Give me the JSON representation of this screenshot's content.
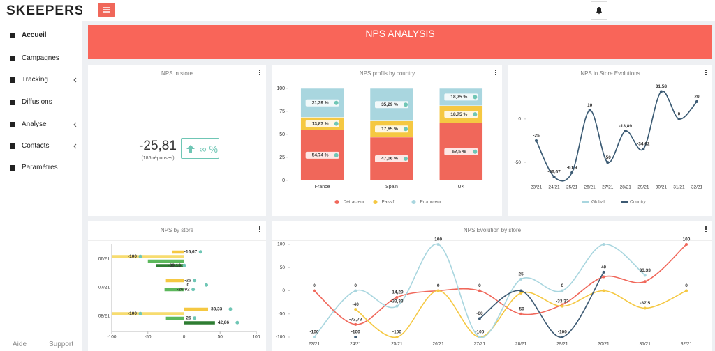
{
  "sidebar": {
    "logo": "SKEEPERS",
    "items": [
      "Accueil",
      "Campagnes",
      "Tracking",
      "Diffusions",
      "Analyse",
      "Contacts",
      "Paramètres"
    ],
    "footer": [
      "Aide",
      "Support"
    ]
  },
  "header": {
    "title": "NPS ANALYSIS"
  },
  "kpi": {
    "title": "NPS in store",
    "value": "-25,81",
    "note": "(186 réponses)",
    "change": "∞ %"
  },
  "chart_data": [
    {
      "type": "stacked_bar",
      "title": "NPS profils by country",
      "categories": [
        "France",
        "Spain",
        "UK"
      ],
      "series": [
        {
          "name": "Détracteur",
          "color": "#f0675a",
          "values": [
            54.74,
            47.06,
            62.5
          ],
          "value_labels": [
            "54,74 %",
            "47,06 %",
            "62,5 %"
          ]
        },
        {
          "name": "Passif",
          "color": "#f5c842",
          "values": [
            13.87,
            17.65,
            18.75
          ],
          "value_labels": [
            "13,87 %",
            "17,65 %",
            "18,75 %"
          ]
        },
        {
          "name": "Promoteur",
          "color": "#a9d6df",
          "values": [
            31.39,
            35.29,
            18.75
          ],
          "value_labels": [
            "31,39 %",
            "35,29 %",
            "18,75 %"
          ]
        }
      ],
      "ylim": [
        0,
        100
      ],
      "yticks": [
        0,
        25,
        50,
        75,
        100
      ]
    },
    {
      "type": "line",
      "title": "NPS in Store Evolutions",
      "categories": [
        "23/21",
        "24/21",
        "25/21",
        "26/21",
        "27/21",
        "28/21",
        "29/21",
        "30/21",
        "31/21",
        "32/21"
      ],
      "series": [
        {
          "name": "Global",
          "color": "#a9d6df",
          "values": [
            -25,
            -66.67,
            -61.9,
            10,
            -50,
            -13.89,
            -34.62,
            31.58,
            0,
            20
          ]
        },
        {
          "name": "Country",
          "color": "#3d5a73",
          "values": [
            -25,
            -66.67,
            -61.9,
            10,
            -50,
            -13.89,
            -34.62,
            31.58,
            0,
            20
          ],
          "value_labels": [
            "-25",
            "-66,67",
            "-61,9",
            "10",
            "-50",
            "-13,89",
            "-34,62",
            "31,58",
            "0",
            "20"
          ]
        }
      ],
      "ylim": [
        -70,
        40
      ],
      "yticks": [
        -50,
        0
      ]
    },
    {
      "type": "hbar",
      "title": "NPS by store",
      "categories": [
        "06/21",
        "07/21",
        "08/21"
      ],
      "series": [
        {
          "color": "#f5c842",
          "values": [
            -16.67,
            -25,
            33.33
          ],
          "value_labels": [
            "-16,67",
            "-25",
            "33,33"
          ]
        },
        {
          "color": "#f7dc6f",
          "values": [
            -100,
            0,
            -100
          ],
          "value_labels": [
            "-100",
            "0",
            "-100"
          ]
        },
        {
          "color": "#5cb85c",
          "values": [
            -50,
            -26.92,
            -25
          ],
          "value_labels": [
            null,
            "-26,92",
            "-25"
          ]
        },
        {
          "color": "#2e7d32",
          "values": [
            -39.13,
            null,
            42.86
          ],
          "value_labels": [
            "-39,13",
            null,
            "42,86"
          ]
        }
      ],
      "xlim": [
        -100,
        100
      ],
      "xticks": [
        -100,
        -50,
        0,
        50,
        100
      ]
    },
    {
      "type": "line",
      "title": "NPS Evolution by store",
      "categories": [
        "23/21",
        "24/21",
        "25/21",
        "26/21",
        "27/21",
        "28/21",
        "29/21",
        "30/21",
        "31/21",
        "32/21"
      ],
      "series": [
        {
          "color": "#f0675a",
          "values": [
            0,
            -72.73,
            -14.29,
            0,
            0,
            -50,
            -30,
            30,
            20,
            100
          ],
          "value_labels": [
            "0",
            "-72,73",
            "-14,29",
            "0",
            "0",
            "-50",
            null,
            null,
            null,
            "100"
          ]
        },
        {
          "color": "#f5c842",
          "values": [
            null,
            -40,
            -100,
            0,
            -100,
            -5,
            -33.33,
            0,
            -37.5,
            0
          ],
          "value_labels": [
            null,
            "-40",
            "-100",
            null,
            "-100",
            null,
            "-33,33",
            null,
            "-37,5",
            "0"
          ]
        },
        {
          "color": "#a9d6df",
          "values": [
            -100,
            0,
            -33.33,
            100,
            -100,
            25,
            0,
            100,
            33.33,
            null
          ],
          "value_labels": [
            "-100",
            "0",
            "-33,33",
            "100",
            null,
            "25",
            "0",
            null,
            "33,33",
            null
          ]
        },
        {
          "color": "#3d5a73",
          "values": [
            null,
            -100,
            null,
            null,
            -60,
            0,
            -100,
            40,
            null,
            null
          ],
          "value_labels": [
            null,
            "-100",
            null,
            null,
            "-60",
            null,
            "-100",
            "40",
            null,
            null
          ]
        }
      ],
      "ylim": [
        -100,
        100
      ],
      "yticks": [
        -100,
        -50,
        0,
        50,
        100
      ]
    }
  ]
}
